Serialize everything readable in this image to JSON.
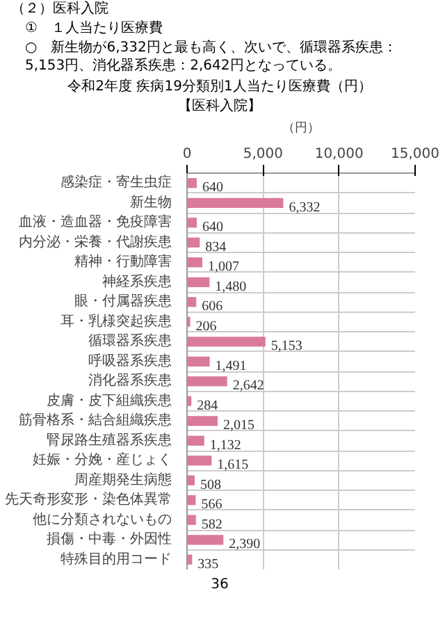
{
  "chart_data": {
    "type": "bar",
    "orientation": "horizontal",
    "title": "令和2年度 疾病19分類別1人当たり医療費（円）",
    "subtitle": "【医科入院】",
    "xlabel": "（円）",
    "annotations": [
      "（２）医科入院",
      "①　１人当たり医療費",
      "○　新生物が6,332円と最も高く、次いで、循環器系疾患：5,153円、消化器系疾患：2,642円となっている。",
      "36"
    ],
    "categories": [
      "感染症・寄生虫症",
      "新生物",
      "血液・造血器・免疫障害",
      "内分泌・栄養・代謝疾患",
      "精神・行動障害",
      "神経系疾患",
      "眼・付属器疾患",
      "耳・乳様突起疾患",
      "循環器系疾患",
      "呼吸器系疾患",
      "消化器系疾患",
      "皮膚・皮下組織疾患",
      "筋骨格系・結合組織疾患",
      "腎尿路生殖器系疾患",
      "妊娠・分娩・産じょく",
      "周産期発生病態",
      "先天奇形変形・染色体異常",
      "他に分類されないもの",
      "損傷・中毒・外因性",
      "特殊目的用コード"
    ],
    "values": [
      640,
      6332,
      640,
      834,
      1007,
      1480,
      606,
      206,
      5153,
      1491,
      2642,
      284,
      2015,
      1132,
      1615,
      508,
      566,
      582,
      2390,
      335
    ],
    "color": "#d97a9c",
    "xlim": [
      0,
      15000
    ],
    "xticks": [
      0,
      {
        "value": 5000,
        "label": "5,000"
      },
      {
        "value": 10000,
        "label": "10,000"
      },
      {
        "value": 15000,
        "label": "15,000"
      }
    ],
    "value_labels": [
      "640",
      "6,332",
      "640",
      "834",
      "1,007",
      "1,480",
      "606",
      "206",
      "5,153",
      "1,491",
      "2,642",
      "284",
      "2,015",
      "1,132",
      "1,615",
      "508",
      "566",
      "582",
      "2,390",
      "335"
    ],
    "grid": true
  }
}
